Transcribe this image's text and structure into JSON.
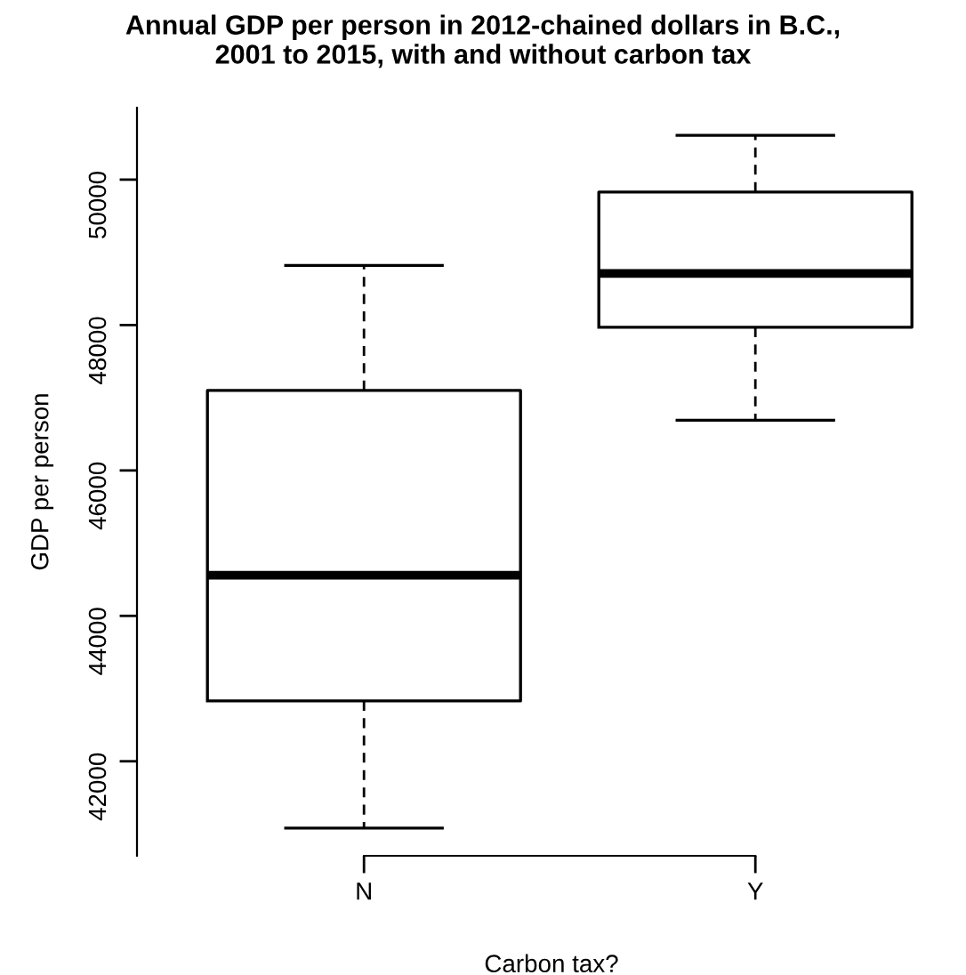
{
  "chart_data": {
    "type": "box",
    "title": "Annual GDP per person in 2012-chained dollars in B.C.,\n2001 to 2015, with and without carbon tax",
    "xlabel": "Carbon tax?",
    "ylabel": "GDP per person",
    "categories": [
      "N",
      "Y"
    ],
    "boxes": [
      {
        "low": 41080,
        "q1": 42830,
        "median": 44560,
        "q3": 47100,
        "high": 48820
      },
      {
        "low": 46690,
        "q1": 47970,
        "median": 48710,
        "q3": 49830,
        "high": 50610
      }
    ],
    "ylim": [
      40700,
      50990
    ],
    "yticks": [
      42000,
      44000,
      46000,
      48000,
      50000
    ],
    "grid": false
  }
}
